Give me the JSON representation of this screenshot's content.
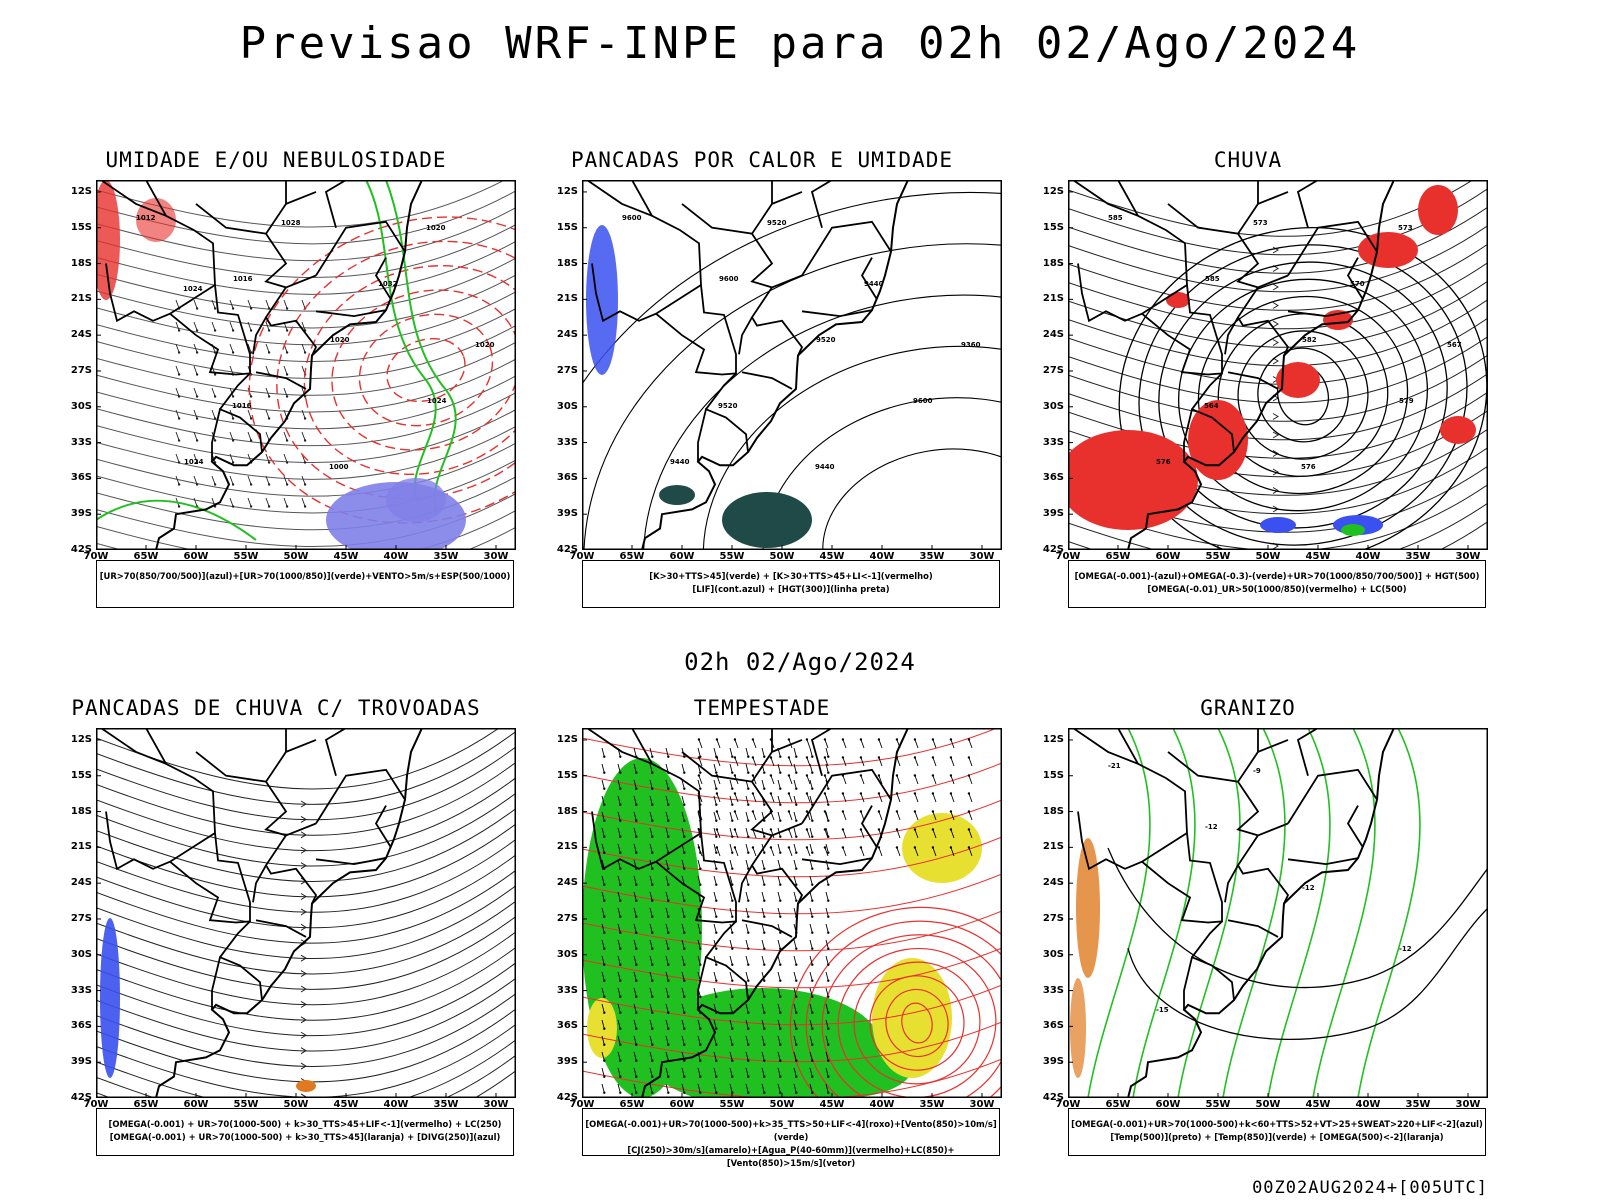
{
  "title": "Previsao WRF-INPE  para 02h 02/Ago/2024",
  "mid_time": "02h 02/Ago/2024",
  "footer": "00Z02AUG2024+[005UTC]",
  "lat_labels": [
    "12S",
    "15S",
    "18S",
    "21S",
    "24S",
    "27S",
    "30S",
    "33S",
    "36S",
    "39S",
    "42S"
  ],
  "lon_labels": [
    "70W",
    "65W",
    "60W",
    "55W",
    "50W",
    "45W",
    "40W",
    "35W",
    "30W"
  ],
  "colors": {
    "red": "#e8302d",
    "green": "#20c020",
    "blue": "#3a50f0",
    "yellow": "#e8e030",
    "darkteal": "#1f4a48",
    "orange": "#e07a20",
    "purple": "#8080e8"
  },
  "panels": [
    {
      "id": "umidade",
      "title": "UMIDADE E/OU NEBULOSIDADE",
      "legend": [
        "[UR>70(850/700/500)](azul)+[UR>70(1000/850)](verde)+VENTO>5m/s+ESP(500/1000)"
      ],
      "contour_labels": [
        "1012",
        "1016",
        "1020",
        "1024",
        "1024",
        "1028",
        "1032",
        "1020",
        "1016",
        "1000",
        "1020",
        "1024"
      ]
    },
    {
      "id": "pancadas-calor",
      "title": "PANCADAS POR CALOR E UMIDADE",
      "legend": [
        "[K>30+TTS>45](verde) + [K>30+TTS>45+LI<-1](vermelho)",
        "[LIF](cont.azul) + [HGT(300)](linha preta)"
      ],
      "contour_labels": [
        "9600",
        "9600",
        "9520",
        "9600",
        "9440",
        "9520",
        "9440",
        "9360",
        "9520",
        "9440"
      ]
    },
    {
      "id": "chuva",
      "title": "CHUVA",
      "legend": [
        "[OMEGA(-0.001)-(azul)+OMEGA(-0.3)-(verde)+UR>70(1000/850/700/500)] + HGT(500)",
        "[OMEGA(-0.01)_UR>50(1000/850)(vermelho) + LC(500)"
      ],
      "contour_labels": [
        "585",
        "585",
        "582",
        "579",
        "576",
        "573",
        "570",
        "567",
        "564",
        "576",
        "573"
      ]
    },
    {
      "id": "pancadas-trovoadas",
      "title": "PANCADAS DE CHUVA C/ TROVOADAS",
      "legend": [
        "[OMEGA(-0.001) + UR>70(1000-500) + k>30_TTS>45+LIF<-1](vermelho) + LC(250)",
        "[OMEGA(-0.001) + UR>70(1000-500) + k>30_TTS>45](laranja) + [DIVG(250)](azul)"
      ],
      "contour_labels": []
    },
    {
      "id": "tempestade",
      "title": "TEMPESTADE",
      "legend": [
        "[OMEGA(-0.001)+UR>70(1000-500)+k>35_TTS>50+LIF<-4](roxo)+[Vento(850)>10m/s](verde)",
        "[CJ(250)>30m/s](amarelo)+[Agua_P(40-60mm)](vermelho)+LC(850)+[Vento(850)>15m/s](vetor)"
      ],
      "contour_labels": []
    },
    {
      "id": "granizo",
      "title": "GRANIZO",
      "legend": [
        "[OMEGA(-0.001)+UR>70(1000-500)+k<60+TTS>52+VT>25+SWEAT>220+LIF<-2](azul)",
        "[Temp(500)](preto) + [Temp(850)](verde) + [OMEGA(500)<-2](laranja)"
      ],
      "contour_labels": [
        "-21",
        "-12",
        "-12",
        "-12",
        "-15",
        "-9"
      ]
    }
  ]
}
